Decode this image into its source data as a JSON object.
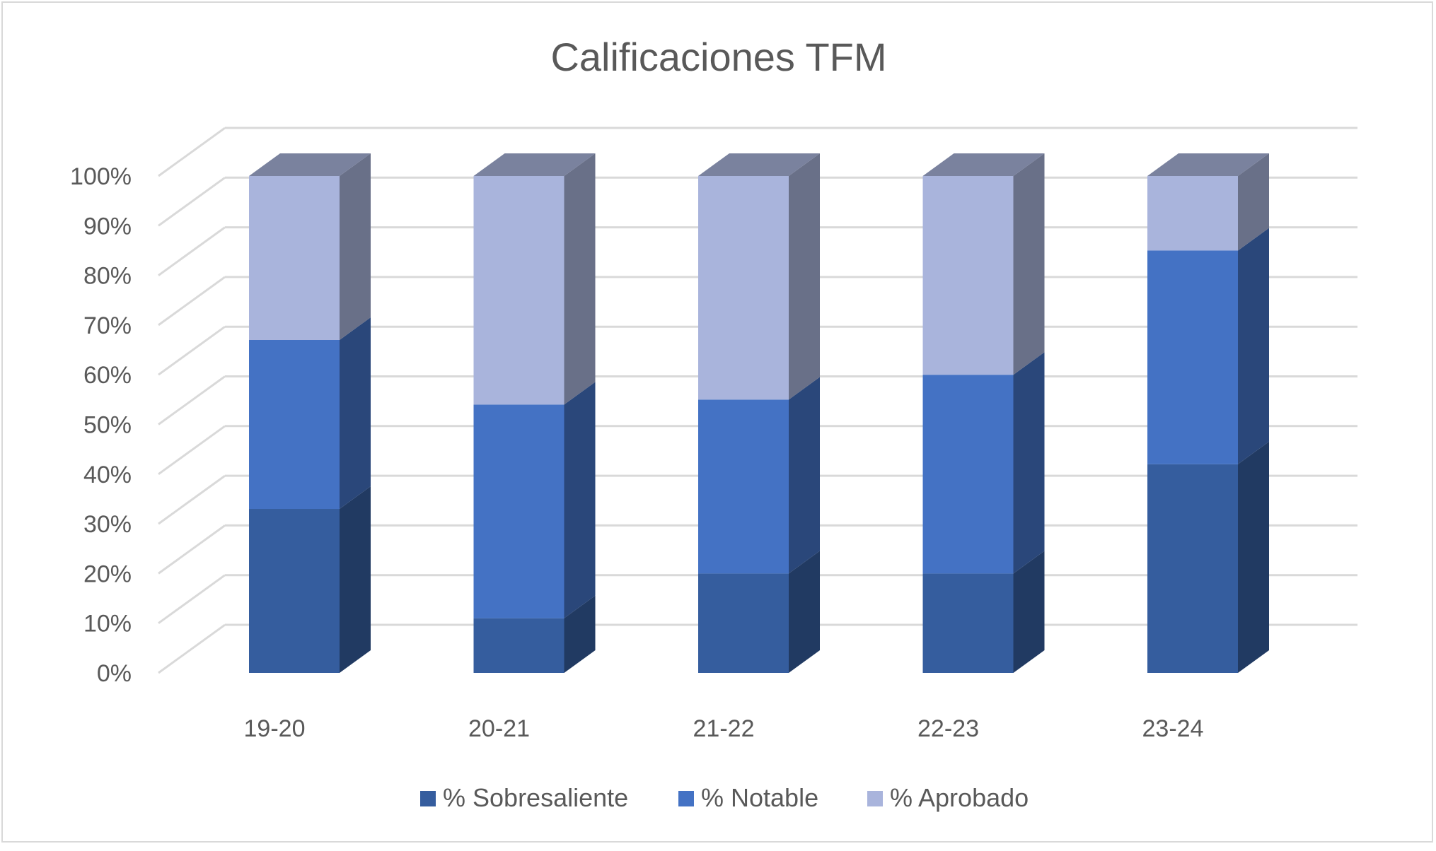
{
  "chart_data": {
    "type": "bar",
    "stacked": true,
    "percent_stacked": true,
    "three_d": true,
    "title": "Calificaciones TFM",
    "xlabel": "",
    "ylabel": "",
    "categories": [
      "19-20",
      "20-21",
      "21-22",
      "22-23",
      "23-24"
    ],
    "series": [
      {
        "name": "% Sobresaliente",
        "color": "#355d9e",
        "values": [
          33,
          11,
          20,
          20,
          42
        ]
      },
      {
        "name": "% Notable",
        "color": "#4472c4",
        "values": [
          34,
          43,
          35,
          40,
          43
        ]
      },
      {
        "name": "% Aprobado",
        "color": "#a9b4dc",
        "values": [
          33,
          46,
          45,
          40,
          15
        ]
      }
    ],
    "yticks": [
      "0%",
      "10%",
      "20%",
      "30%",
      "40%",
      "50%",
      "60%",
      "70%",
      "80%",
      "90%",
      "100%"
    ],
    "ylim": [
      0,
      100
    ],
    "grid": true,
    "legend": "bottom"
  }
}
